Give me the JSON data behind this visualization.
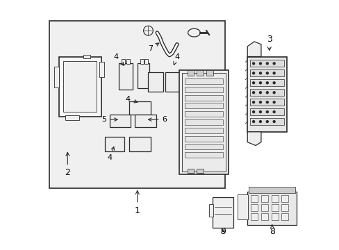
{
  "bg_color": "#ffffff",
  "line_color": "#2a2a2a",
  "fill_box": "#f5f5f5",
  "fill_light": "#eeeeee",
  "fill_mid": "#cccccc",
  "fill_dark": "#aaaaaa",
  "hatching": "#888888"
}
